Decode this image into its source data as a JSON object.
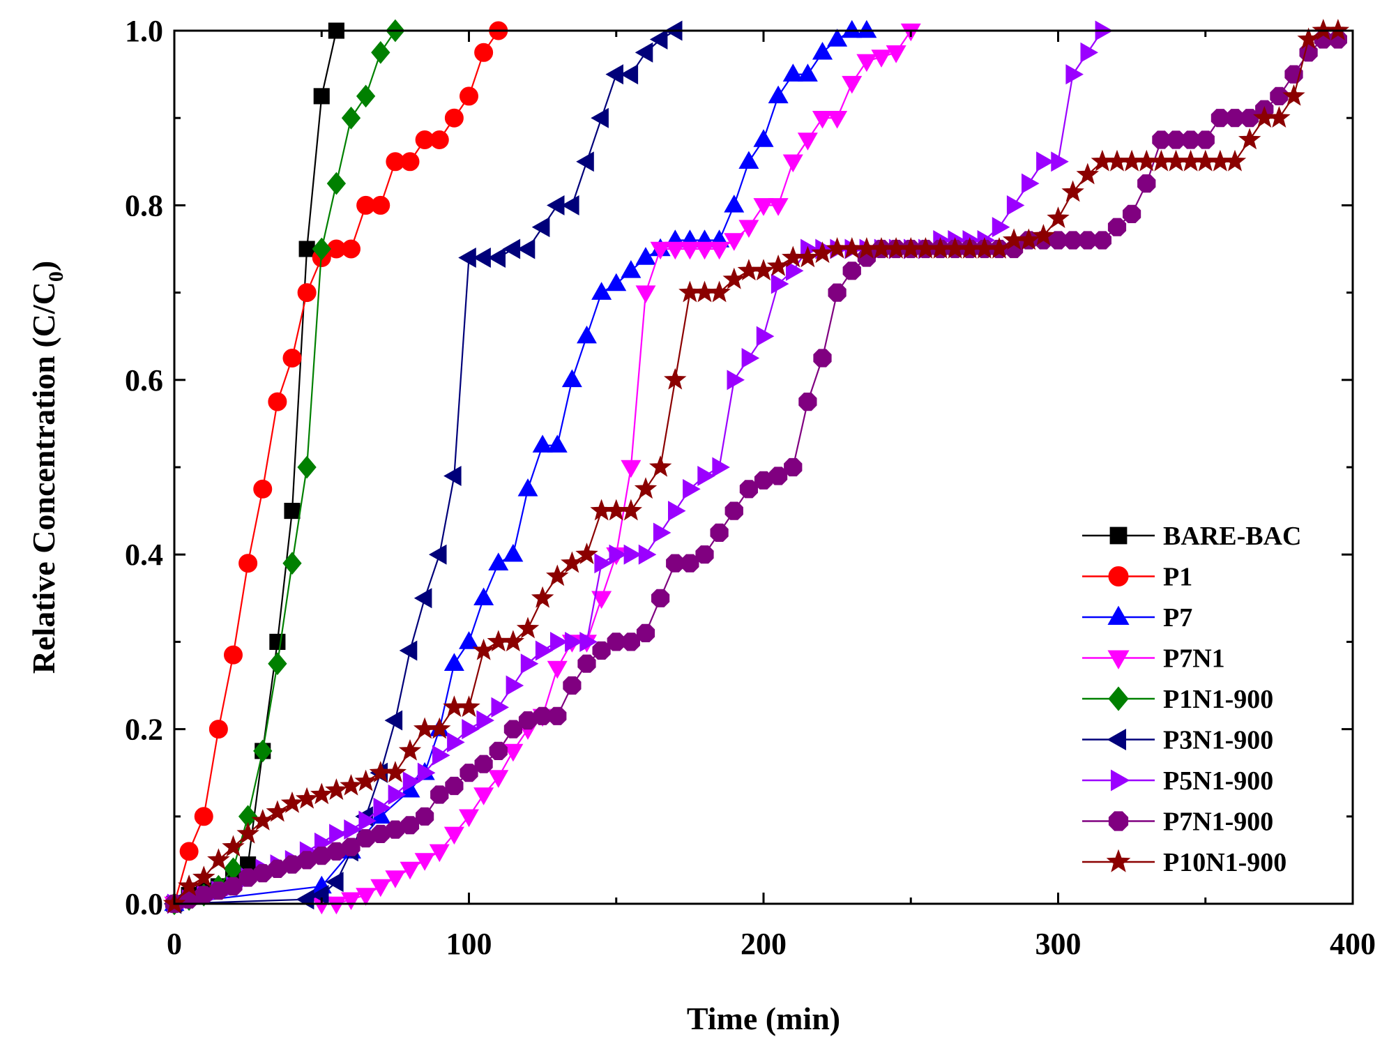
{
  "chart_data": {
    "type": "line",
    "title": "",
    "xlabel": "Time (min)",
    "ylabel_main": "Relative Concentration (C/C",
    "ylabel_sub": "0",
    "ylabel_close": ")",
    "xlim": [
      0,
      400
    ],
    "ylim": [
      0,
      1.0
    ],
    "xticks": [
      0,
      100,
      200,
      300,
      400
    ],
    "xtick_labels": [
      "0",
      "100",
      "200",
      "300",
      "400"
    ],
    "yticks": [
      0,
      0.2,
      0.4,
      0.6,
      0.8,
      1.0
    ],
    "ytick_labels": [
      "0.0",
      "0.2",
      "0.4",
      "0.6",
      "0.8",
      "1.0"
    ],
    "grid": false,
    "legend_position": "lower-right",
    "series": [
      {
        "name": "BARE-BAC",
        "color": "#000000",
        "marker": "square",
        "x": [
          0,
          5,
          10,
          15,
          20,
          25,
          30,
          35,
          40,
          45,
          50,
          55
        ],
        "y": [
          0,
          0.01,
          0.015,
          0.02,
          0.03,
          0.045,
          0.175,
          0.3,
          0.45,
          0.75,
          0.925,
          1.0
        ]
      },
      {
        "name": "P1",
        "color": "#ff0000",
        "marker": "circle",
        "x": [
          0,
          5,
          10,
          15,
          20,
          25,
          30,
          35,
          40,
          45,
          50,
          55,
          60,
          65,
          70,
          75,
          80,
          85,
          90,
          95,
          100,
          105,
          110
        ],
        "y": [
          0,
          0.06,
          0.1,
          0.2,
          0.285,
          0.39,
          0.475,
          0.575,
          0.625,
          0.7,
          0.74,
          0.75,
          0.75,
          0.8,
          0.8,
          0.85,
          0.85,
          0.875,
          0.875,
          0.9,
          0.925,
          0.975,
          1.0
        ]
      },
      {
        "name": "P7",
        "color": "#0000ff",
        "marker": "triangle-up",
        "x": [
          0,
          50,
          60,
          70,
          80,
          85,
          90,
          95,
          100,
          105,
          110,
          115,
          120,
          125,
          130,
          135,
          140,
          145,
          150,
          155,
          160,
          165,
          170,
          175,
          180,
          185,
          190,
          195,
          200,
          205,
          210,
          215,
          220,
          225,
          230,
          235
        ],
        "y": [
          0,
          0.02,
          0.06,
          0.1,
          0.13,
          0.15,
          0.2,
          0.275,
          0.3,
          0.35,
          0.39,
          0.4,
          0.475,
          0.525,
          0.525,
          0.6,
          0.65,
          0.7,
          0.71,
          0.725,
          0.74,
          0.75,
          0.76,
          0.76,
          0.76,
          0.76,
          0.8,
          0.85,
          0.875,
          0.925,
          0.95,
          0.95,
          0.975,
          0.99,
          1.0,
          1.0
        ]
      },
      {
        "name": "P7N1",
        "color": "#ff00ff",
        "marker": "triangle-down",
        "x": [
          0,
          50,
          55,
          60,
          65,
          70,
          75,
          80,
          85,
          90,
          95,
          100,
          105,
          110,
          115,
          120,
          125,
          130,
          135,
          140,
          145,
          150,
          155,
          160,
          165,
          170,
          175,
          180,
          185,
          190,
          195,
          200,
          205,
          210,
          215,
          220,
          225,
          230,
          235,
          240,
          245,
          250
        ],
        "y": [
          0,
          0,
          0,
          0.005,
          0.01,
          0.02,
          0.03,
          0.04,
          0.05,
          0.06,
          0.08,
          0.1,
          0.125,
          0.145,
          0.175,
          0.2,
          0.215,
          0.27,
          0.3,
          0.3,
          0.35,
          0.4,
          0.5,
          0.7,
          0.75,
          0.75,
          0.75,
          0.75,
          0.75,
          0.76,
          0.775,
          0.8,
          0.8,
          0.85,
          0.875,
          0.9,
          0.9,
          0.94,
          0.965,
          0.97,
          0.975,
          1.0
        ]
      },
      {
        "name": "P1N1-900",
        "color": "#008000",
        "marker": "diamond",
        "x": [
          0,
          5,
          10,
          15,
          20,
          25,
          30,
          35,
          40,
          45,
          50,
          55,
          60,
          65,
          70,
          75
        ],
        "y": [
          0,
          0.005,
          0.01,
          0.02,
          0.04,
          0.1,
          0.175,
          0.275,
          0.39,
          0.5,
          0.75,
          0.825,
          0.9,
          0.925,
          0.975,
          1.0
        ]
      },
      {
        "name": "P3N1-900",
        "color": "#00007a",
        "marker": "triangle-left",
        "x": [
          0,
          45,
          50,
          55,
          60,
          65,
          70,
          75,
          80,
          85,
          90,
          95,
          100,
          105,
          110,
          115,
          120,
          125,
          130,
          135,
          140,
          145,
          150,
          155,
          160,
          165,
          170
        ],
        "y": [
          0,
          0.005,
          0.01,
          0.025,
          0.06,
          0.1,
          0.15,
          0.21,
          0.29,
          0.35,
          0.4,
          0.49,
          0.74,
          0.74,
          0.74,
          0.75,
          0.75,
          0.775,
          0.8,
          0.8,
          0.85,
          0.9,
          0.95,
          0.95,
          0.975,
          0.99,
          1.0
        ]
      },
      {
        "name": "P5N1-900",
        "color": "#9b00ff",
        "marker": "triangle-right",
        "x": [
          0,
          5,
          10,
          15,
          20,
          25,
          30,
          35,
          40,
          45,
          50,
          55,
          60,
          65,
          70,
          75,
          80,
          85,
          90,
          95,
          100,
          105,
          110,
          115,
          120,
          125,
          130,
          135,
          140,
          145,
          150,
          155,
          160,
          165,
          170,
          175,
          180,
          185,
          190,
          195,
          200,
          205,
          210,
          215,
          220,
          225,
          230,
          235,
          240,
          245,
          250,
          255,
          260,
          265,
          270,
          275,
          280,
          285,
          290,
          295,
          300,
          305,
          310,
          315
        ],
        "y": [
          0,
          0.005,
          0.01,
          0.015,
          0.02,
          0.03,
          0.04,
          0.045,
          0.05,
          0.06,
          0.07,
          0.08,
          0.085,
          0.095,
          0.11,
          0.125,
          0.14,
          0.15,
          0.17,
          0.185,
          0.2,
          0.21,
          0.225,
          0.25,
          0.275,
          0.29,
          0.3,
          0.3,
          0.3,
          0.39,
          0.4,
          0.4,
          0.4,
          0.425,
          0.45,
          0.475,
          0.49,
          0.5,
          0.6,
          0.625,
          0.65,
          0.71,
          0.725,
          0.75,
          0.75,
          0.75,
          0.75,
          0.75,
          0.75,
          0.75,
          0.75,
          0.75,
          0.76,
          0.76,
          0.76,
          0.76,
          0.775,
          0.8,
          0.825,
          0.85,
          0.85,
          0.95,
          0.975,
          1.0
        ]
      },
      {
        "name": "P7N1-900",
        "color": "#800080",
        "marker": "octagon",
        "x": [
          0,
          5,
          10,
          15,
          20,
          25,
          30,
          35,
          40,
          45,
          50,
          55,
          60,
          65,
          70,
          75,
          80,
          85,
          90,
          95,
          100,
          105,
          110,
          115,
          120,
          125,
          130,
          135,
          140,
          145,
          150,
          155,
          160,
          165,
          170,
          175,
          180,
          185,
          190,
          195,
          200,
          205,
          210,
          215,
          220,
          225,
          230,
          235,
          240,
          245,
          250,
          255,
          260,
          265,
          270,
          275,
          280,
          285,
          290,
          295,
          300,
          305,
          310,
          315,
          320,
          325,
          330,
          335,
          340,
          345,
          350,
          355,
          360,
          365,
          370,
          375,
          380,
          385,
          390,
          395
        ],
        "y": [
          0,
          0.005,
          0.01,
          0.015,
          0.02,
          0.03,
          0.035,
          0.04,
          0.045,
          0.05,
          0.055,
          0.06,
          0.065,
          0.075,
          0.08,
          0.085,
          0.09,
          0.1,
          0.125,
          0.135,
          0.15,
          0.16,
          0.175,
          0.2,
          0.21,
          0.215,
          0.215,
          0.25,
          0.275,
          0.29,
          0.3,
          0.3,
          0.31,
          0.35,
          0.39,
          0.39,
          0.4,
          0.425,
          0.45,
          0.475,
          0.485,
          0.49,
          0.5,
          0.575,
          0.625,
          0.7,
          0.725,
          0.74,
          0.75,
          0.75,
          0.75,
          0.75,
          0.75,
          0.75,
          0.75,
          0.75,
          0.75,
          0.75,
          0.76,
          0.76,
          0.76,
          0.76,
          0.76,
          0.76,
          0.775,
          0.79,
          0.825,
          0.875,
          0.875,
          0.875,
          0.875,
          0.9,
          0.9,
          0.9,
          0.91,
          0.925,
          0.95,
          0.975,
          0.99,
          0.99
        ]
      },
      {
        "name": "P10N1-900",
        "color": "#8b0000",
        "marker": "star",
        "x": [
          0,
          5,
          10,
          15,
          20,
          25,
          30,
          35,
          40,
          45,
          50,
          55,
          60,
          65,
          70,
          75,
          80,
          85,
          90,
          95,
          100,
          105,
          110,
          115,
          120,
          125,
          130,
          135,
          140,
          145,
          150,
          155,
          160,
          165,
          170,
          175,
          180,
          185,
          190,
          195,
          200,
          205,
          210,
          215,
          220,
          225,
          230,
          235,
          240,
          245,
          250,
          255,
          260,
          265,
          270,
          275,
          280,
          285,
          290,
          295,
          300,
          305,
          310,
          315,
          320,
          325,
          330,
          335,
          340,
          345,
          350,
          355,
          360,
          365,
          370,
          375,
          380,
          385,
          390,
          395
        ],
        "y": [
          0,
          0.02,
          0.03,
          0.05,
          0.065,
          0.08,
          0.095,
          0.105,
          0.115,
          0.12,
          0.125,
          0.13,
          0.135,
          0.14,
          0.15,
          0.15,
          0.175,
          0.2,
          0.2,
          0.225,
          0.225,
          0.29,
          0.3,
          0.3,
          0.315,
          0.35,
          0.375,
          0.39,
          0.4,
          0.45,
          0.45,
          0.45,
          0.475,
          0.5,
          0.6,
          0.7,
          0.7,
          0.7,
          0.715,
          0.725,
          0.725,
          0.73,
          0.74,
          0.74,
          0.745,
          0.75,
          0.75,
          0.75,
          0.75,
          0.75,
          0.75,
          0.75,
          0.75,
          0.75,
          0.75,
          0.75,
          0.75,
          0.76,
          0.76,
          0.765,
          0.785,
          0.815,
          0.835,
          0.85,
          0.85,
          0.85,
          0.85,
          0.85,
          0.85,
          0.85,
          0.85,
          0.85,
          0.85,
          0.875,
          0.9,
          0.9,
          0.925,
          0.99,
          1.0,
          1.0
        ]
      }
    ]
  }
}
